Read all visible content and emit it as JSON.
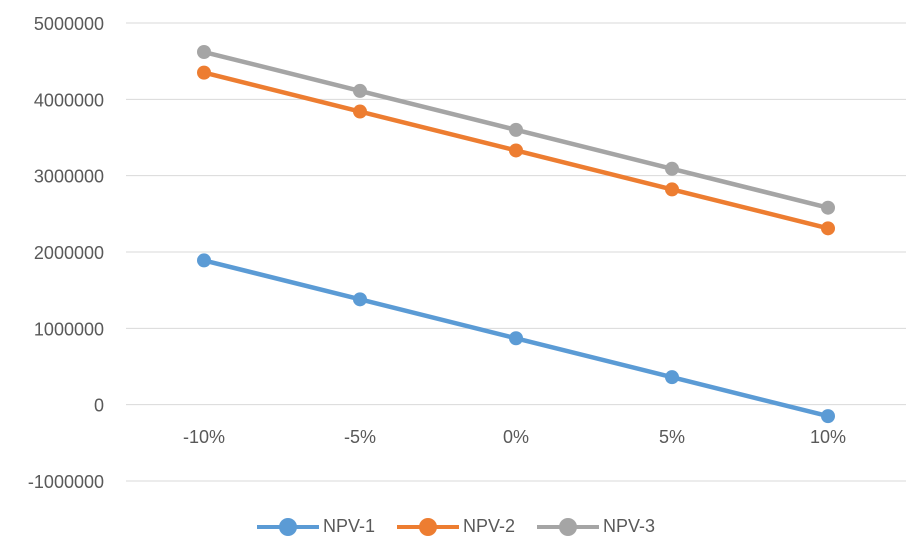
{
  "chart_data": {
    "type": "line",
    "title": "",
    "xlabel": "",
    "ylabel": "",
    "categories": [
      "-10%",
      "-5%",
      "0%",
      "5%",
      "10%"
    ],
    "series": [
      {
        "name": "NPV-1",
        "color": "#5B9BD5",
        "values": [
          1890000,
          1380000,
          870000,
          360000,
          -150000
        ]
      },
      {
        "name": "NPV-2",
        "color": "#ED7D31",
        "values": [
          4350000,
          3840000,
          3330000,
          2820000,
          2310000
        ]
      },
      {
        "name": "NPV-3",
        "color": "#A5A5A5",
        "values": [
          4620000,
          4110000,
          3600000,
          3090000,
          2580000
        ]
      }
    ],
    "ylim": [
      -1000000,
      5000000
    ],
    "yticks": [
      "-1000000",
      "0",
      "1000000",
      "2000000",
      "3000000",
      "4000000",
      "5000000"
    ],
    "grid": true,
    "legend_position": "bottom"
  }
}
